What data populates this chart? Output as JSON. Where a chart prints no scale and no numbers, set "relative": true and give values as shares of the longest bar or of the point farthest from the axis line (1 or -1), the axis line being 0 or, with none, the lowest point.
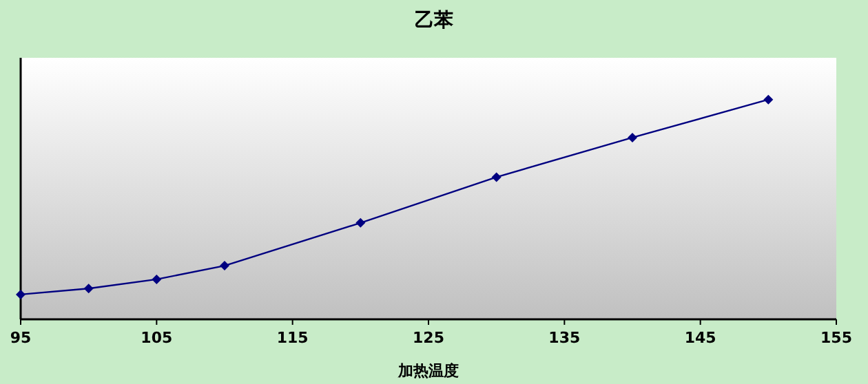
{
  "chart_data": {
    "type": "line",
    "title": "乙苯",
    "xlabel": "加热温度",
    "relative": true,
    "x": [
      95,
      100,
      105,
      110,
      120,
      130,
      140,
      150
    ],
    "series": [
      {
        "color": "#000080",
        "values": [
          0.113,
          0.14,
          0.182,
          0.244,
          0.439,
          0.647,
          0.827,
          1
        ]
      }
    ],
    "xlim": [
      95,
      155
    ],
    "xticks": [
      95,
      105,
      115,
      125,
      135,
      145,
      155
    ],
    "marker": "diamond",
    "line_style": "solid",
    "grid": false
  }
}
